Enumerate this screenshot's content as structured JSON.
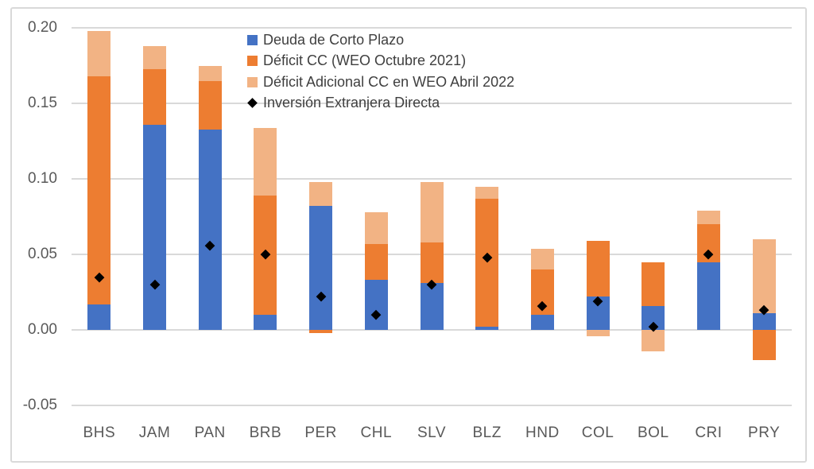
{
  "chart_data": {
    "type": "bar",
    "stacked": true,
    "grid": true,
    "legend_position": "inside-top",
    "categories": [
      "BHS",
      "JAM",
      "PAN",
      "BRB",
      "PER",
      "CHL",
      "SLV",
      "BLZ",
      "HND",
      "COL",
      "BOL",
      "CRI",
      "PRY"
    ],
    "series": [
      {
        "name": "Deuda de Corto Plazo",
        "color": "#4472C4",
        "values": [
          0.017,
          0.136,
          0.133,
          0.01,
          0.082,
          0.033,
          0.031,
          0.002,
          0.01,
          0.022,
          0.016,
          0.045,
          0.011
        ]
      },
      {
        "name": "Déficit CC (WEO Octubre 2021)",
        "color": "#ED7D31",
        "values": [
          0.151,
          0.037,
          0.032,
          0.079,
          -0.002,
          0.024,
          0.027,
          0.085,
          0.03,
          0.037,
          0.029,
          0.025,
          -0.02
        ]
      },
      {
        "name": "Déficit Adicional CC en WEO Abril 2022",
        "color": "#F2B384",
        "values": [
          0.03,
          0.015,
          0.01,
          0.045,
          0.016,
          0.021,
          0.04,
          0.008,
          0.014,
          -0.004,
          -0.014,
          0.009,
          0.049
        ]
      }
    ],
    "marker_series": {
      "name": "Inversión Extranjera Directa",
      "color": "#000000",
      "shape": "diamond",
      "values": [
        0.035,
        0.03,
        0.056,
        0.05,
        0.022,
        0.01,
        0.03,
        0.048,
        0.016,
        0.019,
        0.002,
        0.05,
        0.013
      ]
    },
    "y_axis": {
      "min": -0.05,
      "max": 0.21,
      "ticks": [
        {
          "value": 0.2,
          "label": "0.20"
        },
        {
          "value": 0.15,
          "label": "0.15"
        },
        {
          "value": 0.1,
          "label": "0.10"
        },
        {
          "value": 0.05,
          "label": "0.05"
        },
        {
          "value": 0.0,
          "label": "0.00"
        },
        {
          "value": -0.05,
          "label": "-0.05"
        }
      ]
    },
    "title": "",
    "xlabel": "",
    "ylabel": ""
  },
  "colors": {
    "gridline": "#D9D9D9",
    "axis_text": "#595959",
    "legend_text": "#3F3F3F",
    "frame_border": "#D9D9D9",
    "background": "#FFFFFF"
  }
}
